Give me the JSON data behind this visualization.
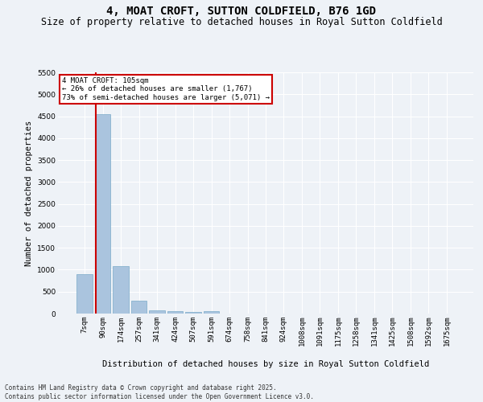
{
  "title": "4, MOAT CROFT, SUTTON COLDFIELD, B76 1GD",
  "subtitle": "Size of property relative to detached houses in Royal Sutton Coldfield",
  "xlabel": "Distribution of detached houses by size in Royal Sutton Coldfield",
  "ylabel": "Number of detached properties",
  "categories": [
    "7sqm",
    "90sqm",
    "174sqm",
    "257sqm",
    "341sqm",
    "424sqm",
    "507sqm",
    "591sqm",
    "674sqm",
    "758sqm",
    "841sqm",
    "924sqm",
    "1008sqm",
    "1091sqm",
    "1175sqm",
    "1258sqm",
    "1341sqm",
    "1425sqm",
    "1508sqm",
    "1592sqm",
    "1675sqm"
  ],
  "values": [
    900,
    4550,
    1080,
    290,
    75,
    60,
    35,
    50,
    0,
    0,
    0,
    0,
    0,
    0,
    0,
    0,
    0,
    0,
    0,
    0,
    0
  ],
  "bar_color": "#aac4de",
  "bar_edge_color": "#7aaac8",
  "annotation_text": "4 MOAT CROFT: 105sqm\n← 26% of detached houses are smaller (1,767)\n73% of semi-detached houses are larger (5,071) →",
  "annotation_box_color": "#ffffff",
  "annotation_box_edge_color": "#cc0000",
  "vline_color": "#cc0000",
  "ylim": [
    0,
    5500
  ],
  "yticks": [
    0,
    500,
    1000,
    1500,
    2000,
    2500,
    3000,
    3500,
    4000,
    4500,
    5000,
    5500
  ],
  "bg_color": "#eef2f7",
  "grid_color": "#ffffff",
  "footer": "Contains HM Land Registry data © Crown copyright and database right 2025.\nContains public sector information licensed under the Open Government Licence v3.0.",
  "title_fontsize": 10,
  "subtitle_fontsize": 8.5,
  "xlabel_fontsize": 7.5,
  "ylabel_fontsize": 7.5,
  "tick_fontsize": 6.5,
  "annot_fontsize": 6.5,
  "footer_fontsize": 5.5
}
